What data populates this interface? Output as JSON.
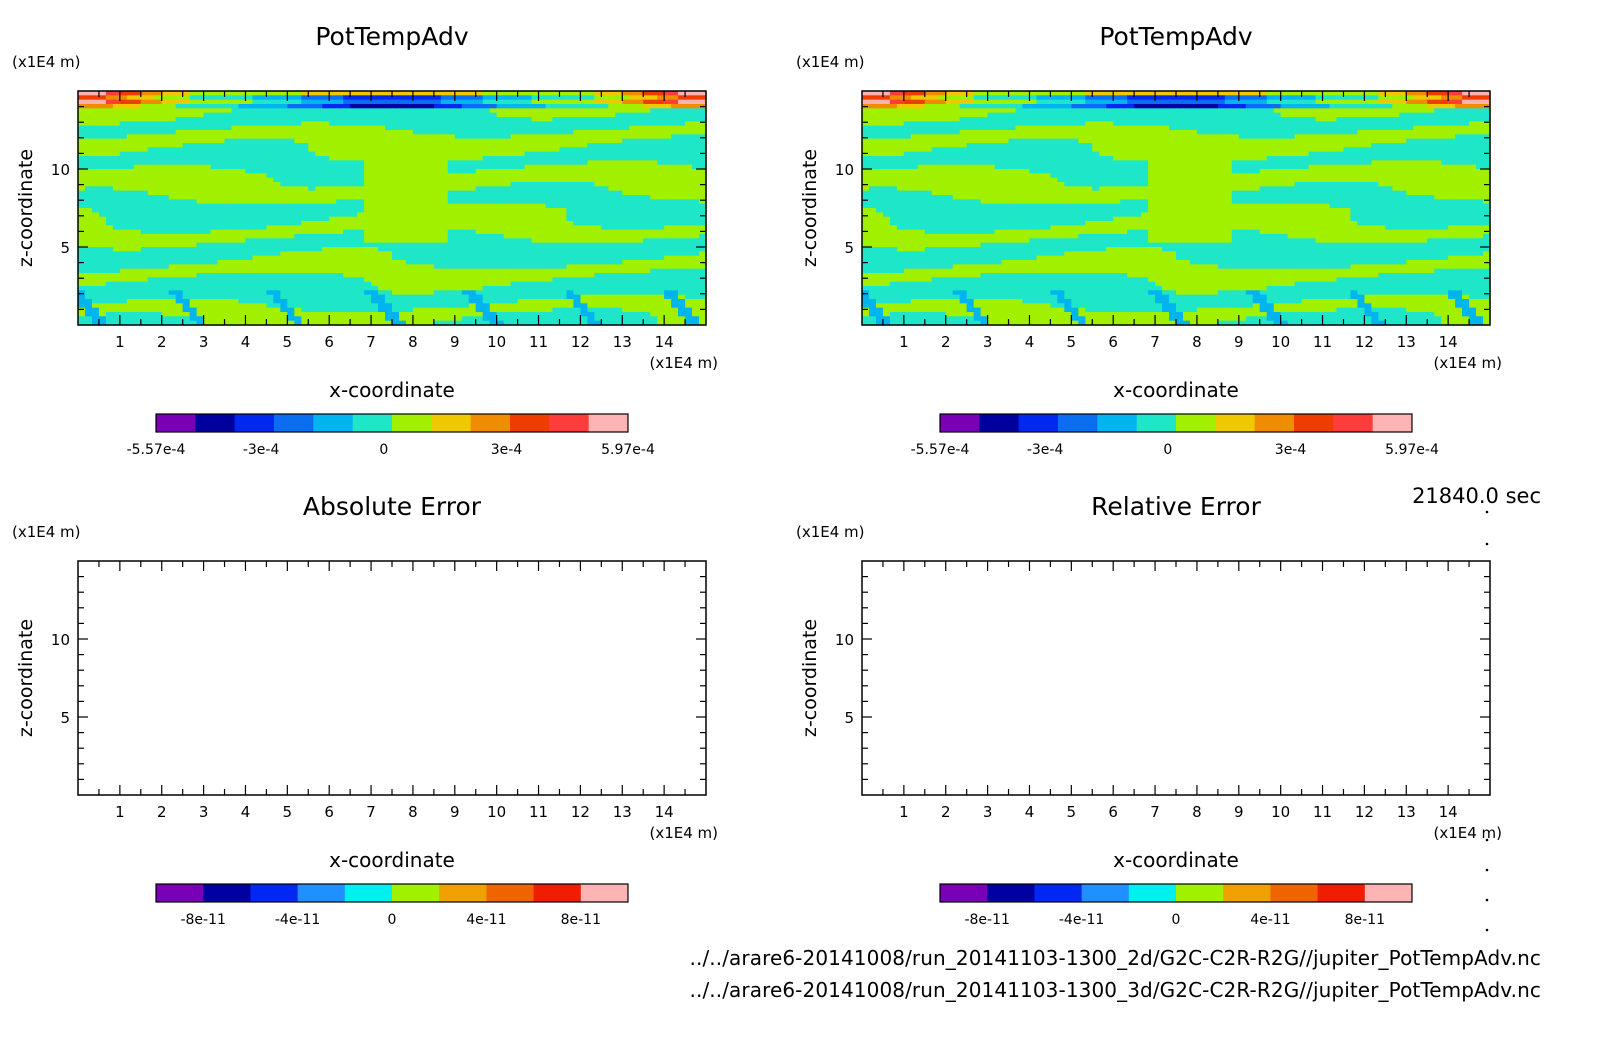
{
  "chart_data": [
    {
      "type": "heatmap",
      "title": "PotTempAdv",
      "xlabel": "x-coordinate",
      "ylabel": "z-coordinate",
      "x_unit": "(x1E4 m)",
      "y_unit": "(x1E4 m)",
      "x_ticks": [
        "1",
        "2",
        "3",
        "4",
        "5",
        "6",
        "7",
        "8",
        "9",
        "10",
        "11",
        "12",
        "13",
        "14"
      ],
      "y_ticks": [
        "5",
        "10"
      ],
      "xlim": [
        0,
        15
      ],
      "ylim": [
        0,
        15
      ],
      "filled": true,
      "colorbar": {
        "tick_labels": [
          "-5.57e-4",
          "-3e-4",
          "0",
          "3e-4",
          "5.97e-4"
        ],
        "range": [
          -0.000557,
          0.000597
        ],
        "colors": [
          "#7a00b8",
          "#0000a0",
          "#0028f0",
          "#0a6ef0",
          "#00b4f0",
          "#1ee6c8",
          "#a0f000",
          "#f0c800",
          "#f08c00",
          "#f03c00",
          "#ff3c3c",
          "#ffb4b4"
        ]
      }
    },
    {
      "type": "heatmap",
      "title": "PotTempAdv",
      "xlabel": "x-coordinate",
      "ylabel": "z-coordinate",
      "x_unit": "(x1E4 m)",
      "y_unit": "(x1E4 m)",
      "x_ticks": [
        "1",
        "2",
        "3",
        "4",
        "5",
        "6",
        "7",
        "8",
        "9",
        "10",
        "11",
        "12",
        "13",
        "14"
      ],
      "y_ticks": [
        "5",
        "10"
      ],
      "xlim": [
        0,
        15
      ],
      "ylim": [
        0,
        15
      ],
      "filled": true,
      "colorbar": {
        "tick_labels": [
          "-5.57e-4",
          "-3e-4",
          "0",
          "3e-4",
          "5.97e-4"
        ],
        "range": [
          -0.000557,
          0.000597
        ],
        "colors": [
          "#7a00b8",
          "#0000a0",
          "#0028f0",
          "#0a6ef0",
          "#00b4f0",
          "#1ee6c8",
          "#a0f000",
          "#f0c800",
          "#f08c00",
          "#f03c00",
          "#ff3c3c",
          "#ffb4b4"
        ]
      }
    },
    {
      "type": "heatmap",
      "title": "Absolute Error",
      "xlabel": "x-coordinate",
      "ylabel": "z-coordinate",
      "x_unit": "(x1E4 m)",
      "y_unit": "(x1E4 m)",
      "x_ticks": [
        "1",
        "2",
        "3",
        "4",
        "5",
        "6",
        "7",
        "8",
        "9",
        "10",
        "11",
        "12",
        "13",
        "14"
      ],
      "y_ticks": [
        "5",
        "10"
      ],
      "xlim": [
        0,
        15
      ],
      "ylim": [
        0,
        15
      ],
      "filled": false,
      "colorbar": {
        "tick_labels": [
          "-8e-11",
          "-4e-11",
          "0",
          "4e-11",
          "8e-11"
        ],
        "range": [
          -1e-10,
          1e-10
        ],
        "colors": [
          "#7a00b8",
          "#0000a0",
          "#0028f0",
          "#1e90ff",
          "#00f0f0",
          "#a0f000",
          "#f0a000",
          "#f06400",
          "#f01e00",
          "#ffb4b4"
        ]
      }
    },
    {
      "type": "heatmap",
      "title": "Relative Error",
      "xlabel": "x-coordinate",
      "ylabel": "z-coordinate",
      "x_unit": "(x1E4 m)",
      "y_unit": "(x1E4 m)",
      "x_ticks": [
        "1",
        "2",
        "3",
        "4",
        "5",
        "6",
        "7",
        "8",
        "9",
        "10",
        "11",
        "12",
        "13",
        "14"
      ],
      "y_ticks": [
        "5",
        "10"
      ],
      "xlim": [
        0,
        15
      ],
      "ylim": [
        0,
        15
      ],
      "filled": false,
      "colorbar": {
        "tick_labels": [
          "-8e-11",
          "-4e-11",
          "0",
          "4e-11",
          "8e-11"
        ],
        "range": [
          -1e-10,
          1e-10
        ],
        "colors": [
          "#7a00b8",
          "#0000a0",
          "#0028f0",
          "#1e90ff",
          "#00f0f0",
          "#a0f000",
          "#f0a000",
          "#f06400",
          "#f01e00",
          "#ffb4b4"
        ]
      }
    }
  ],
  "time_label": "21840.0 sec",
  "footer": {
    "path_2d": "../../arare6-20141008/run_20141103-1300_2d/G2C-C2R-R2G//jupiter_PotTempAdv.nc",
    "path_3d": "../../arare6-20141008/run_20141103-1300_3d/G2C-C2R-R2G//jupiter_PotTempAdv.nc"
  }
}
